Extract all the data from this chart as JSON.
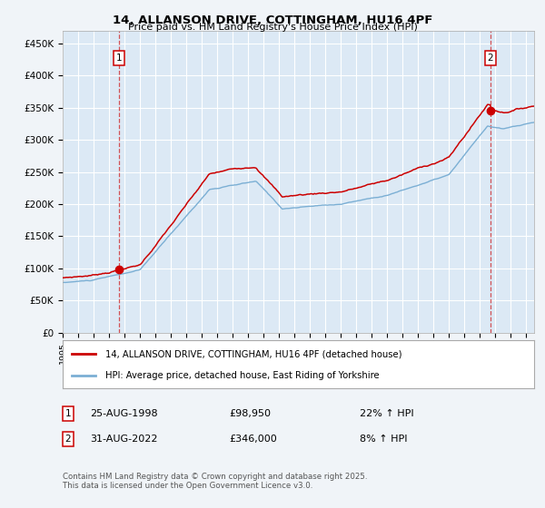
{
  "title": "14, ALLANSON DRIVE, COTTINGHAM, HU16 4PF",
  "subtitle": "Price paid vs. HM Land Registry's House Price Index (HPI)",
  "fig_bg_color": "#f0f4f8",
  "plot_bg_color": "#dce9f5",
  "red_color": "#cc0000",
  "blue_color": "#7bafd4",
  "grid_color": "#ffffff",
  "label1_date": "25-AUG-1998",
  "label1_price": "£98,950",
  "label1_hpi": "22% ↑ HPI",
  "label2_date": "31-AUG-2022",
  "label2_price": "£346,000",
  "label2_hpi": "8% ↑ HPI",
  "vline1_x": 1998.65,
  "vline2_x": 2022.67,
  "dot1_x": 1998.65,
  "dot1_y": 98950,
  "dot2_x": 2022.67,
  "dot2_y": 346000,
  "ylim": [
    0,
    470000
  ],
  "yticks": [
    0,
    50000,
    100000,
    150000,
    200000,
    250000,
    300000,
    350000,
    400000,
    450000
  ],
  "ytick_labels": [
    "£0",
    "£50K",
    "£100K",
    "£150K",
    "£200K",
    "£250K",
    "£300K",
    "£350K",
    "£400K",
    "£450K"
  ],
  "legend_line1": "14, ALLANSON DRIVE, COTTINGHAM, HU16 4PF (detached house)",
  "legend_line2": "HPI: Average price, detached house, East Riding of Yorkshire",
  "footer": "Contains HM Land Registry data © Crown copyright and database right 2025.\nThis data is licensed under the Open Government Licence v3.0.",
  "xmin": 1995.0,
  "xmax": 2025.5
}
